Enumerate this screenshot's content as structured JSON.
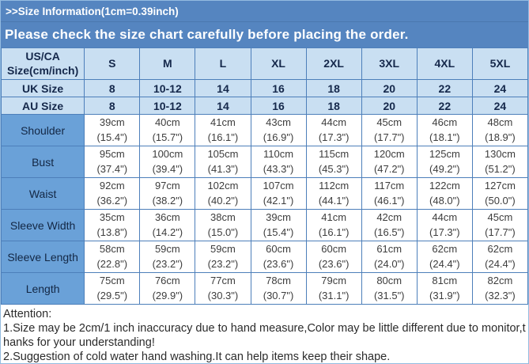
{
  "header": {
    "title": ">>Size Information(1cm=0.39inch)",
    "notice": "Please check the size chart carefully before placing the order."
  },
  "colors": {
    "bar_blue": "#5585c0",
    "label_blue": "#6aa1d8",
    "header_light_blue": "#c9dff2",
    "border_blue": "#4d7fba",
    "outer_border": "#93bbe0"
  },
  "size_table": {
    "corner": {
      "line1": "US/CA",
      "line2": "Size(cm/inch)"
    },
    "columns": [
      "S",
      "M",
      "L",
      "XL",
      "2XL",
      "3XL",
      "4XL",
      "5XL"
    ],
    "uk": {
      "label": "UK Size",
      "values": [
        "8",
        "10-12",
        "14",
        "16",
        "18",
        "20",
        "22",
        "24"
      ]
    },
    "au": {
      "label": "AU Size",
      "values": [
        "8",
        "10-12",
        "14",
        "16",
        "18",
        "20",
        "22",
        "24"
      ]
    },
    "rows": [
      {
        "label": "Shoulder",
        "cm": [
          "39cm",
          "40cm",
          "41cm",
          "43cm",
          "44cm",
          "45cm",
          "46cm",
          "48cm"
        ],
        "inch": [
          "(15.4\")",
          "(15.7\")",
          "(16.1\")",
          "(16.9\")",
          "(17.3\")",
          "(17.7\")",
          "(18.1\")",
          "(18.9\")"
        ]
      },
      {
        "label": "Bust",
        "cm": [
          "95cm",
          "100cm",
          "105cm",
          "110cm",
          "115cm",
          "120cm",
          "125cm",
          "130cm"
        ],
        "inch": [
          "(37.4\")",
          "(39.4\")",
          "(41.3\")",
          "(43.3\")",
          "(45.3\")",
          "(47.2\")",
          "(49.2\")",
          "(51.2\")"
        ]
      },
      {
        "label": "Waist",
        "cm": [
          "92cm",
          "97cm",
          "102cm",
          "107cm",
          "112cm",
          "117cm",
          "122cm",
          "127cm"
        ],
        "inch": [
          "(36.2\")",
          "(38.2\")",
          "(40.2\")",
          "(42.1\")",
          "(44.1\")",
          "(46.1\")",
          "(48.0\")",
          "(50.0\")"
        ]
      },
      {
        "label": "Sleeve Width",
        "cm": [
          "35cm",
          "36cm",
          "38cm",
          "39cm",
          "41cm",
          "42cm",
          "44cm",
          "45cm"
        ],
        "inch": [
          "(13.8\")",
          "(14.2\")",
          "(15.0\")",
          "(15.4\")",
          "(16.1\")",
          "(16.5\")",
          "(17.3\")",
          "(17.7\")"
        ]
      },
      {
        "label": "Sleeve Length",
        "cm": [
          "58cm",
          "59cm",
          "59cm",
          "60cm",
          "60cm",
          "61cm",
          "62cm",
          "62cm"
        ],
        "inch": [
          "(22.8\")",
          "(23.2\")",
          "(23.2\")",
          "(23.6\")",
          "(23.6\")",
          "(24.0\")",
          "(24.4\")",
          "(24.4\")"
        ]
      },
      {
        "label": "Length",
        "cm": [
          "75cm",
          "76cm",
          "77cm",
          "78cm",
          "79cm",
          "80cm",
          "81cm",
          "82cm"
        ],
        "inch": [
          "(29.5\")",
          "(29.9\")",
          "(30.3\")",
          "(30.7\")",
          "(31.1\")",
          "(31.5\")",
          "(31.9\")",
          "(32.3\")"
        ]
      }
    ]
  },
  "attention": {
    "heading": "Attention:",
    "lines": [
      "1.Size may be 2cm/1 inch inaccuracy due to hand measure,Color may be little different due to monitor,t",
      "hanks for your understanding!",
      "2.Suggestion of cold water hand washing.It can help items keep their shape."
    ]
  }
}
